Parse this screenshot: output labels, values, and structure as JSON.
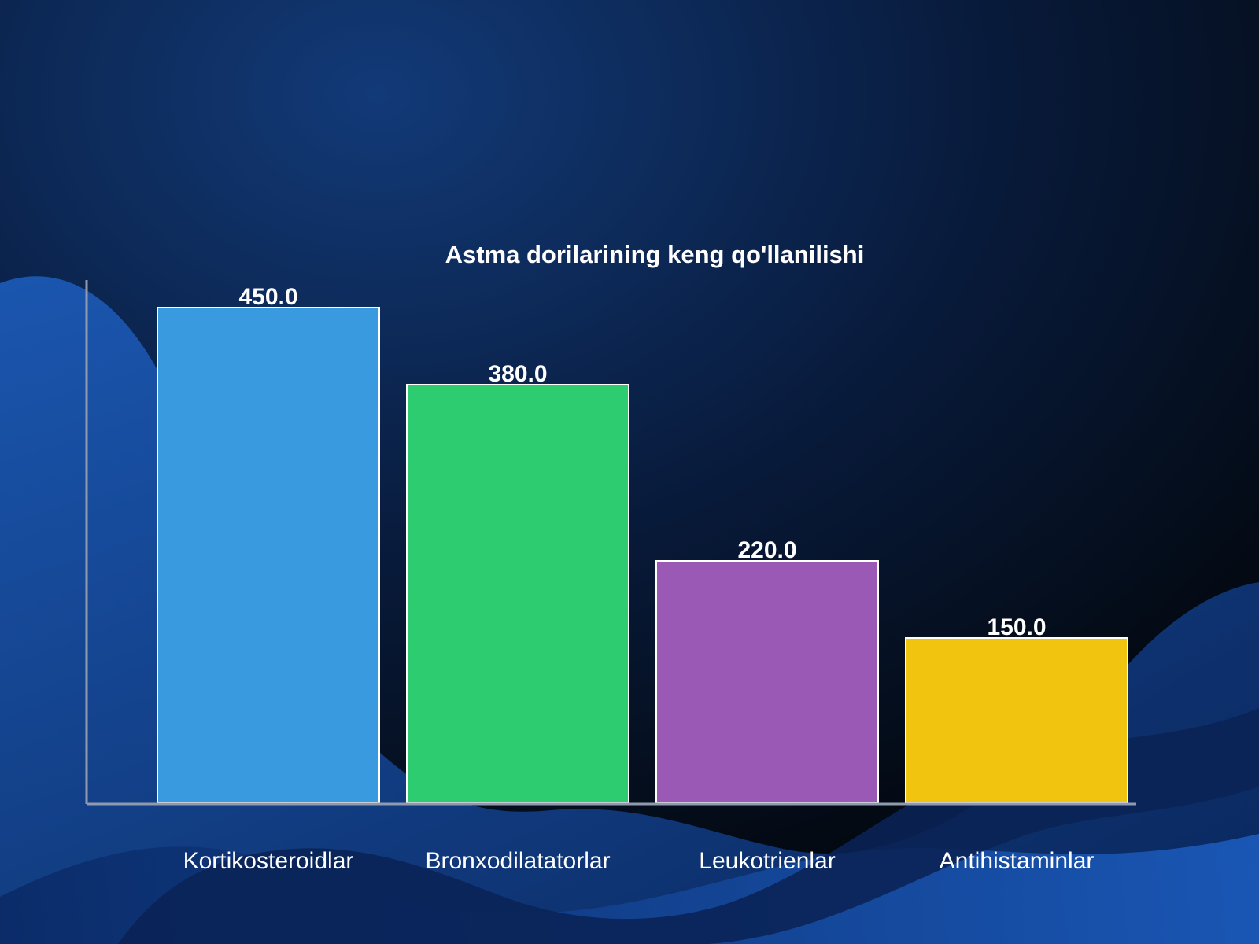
{
  "chart_data": {
    "type": "bar",
    "title": "Astma dorilarining keng qo'llanilishi",
    "xlabel": "",
    "ylabel": "",
    "categories": [
      "Kortikosteroidlar",
      "Bronxodilatatorlar",
      "Leukotrienlar",
      "Antihistaminlar"
    ],
    "values": [
      450,
      380,
      220,
      150
    ],
    "value_labels": [
      "450.0",
      "380.0",
      "220.0",
      "150.0"
    ],
    "colors": [
      "#3a9ae0",
      "#2ecc71",
      "#9b59b6",
      "#f1c40f"
    ],
    "ylim": [
      0,
      500
    ],
    "grid": false,
    "legend": "none"
  },
  "theme": {
    "background": "#050d1c",
    "wave_color": "#1550a8",
    "axis_color": "#8f9aae",
    "text_color": "#ffffff",
    "bar_border": "#ffffff"
  }
}
